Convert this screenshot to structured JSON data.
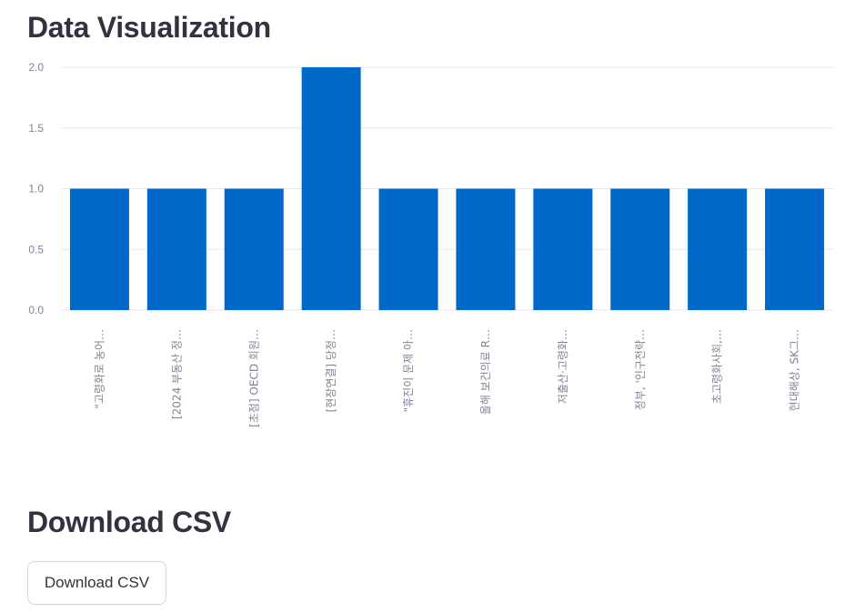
{
  "sections": {
    "viz_title": "Data Visualization",
    "download_title": "Download CSV",
    "download_button": "Download CSV"
  },
  "colors": {
    "bar": "#0068c9",
    "grid": "#e6e9ef",
    "tick": "#808495"
  },
  "chart_data": {
    "type": "bar",
    "title": "",
    "xlabel": "",
    "ylabel": "",
    "categories": [
      "\"고령화로 농어…",
      "[2024 부동산 정…",
      "[초점] OECD 회원…",
      "[현장연결] 당정…",
      "\"휴진이 문제 아…",
      "올해 보건의료 R…",
      "저출산·고령화…",
      "정부, '인구전략…",
      "초고령화사회,…",
      "현대해상, SK그…"
    ],
    "values": [
      1,
      1,
      1,
      2,
      1,
      1,
      1,
      1,
      1,
      1
    ],
    "ylim": [
      0,
      2
    ],
    "yticks": [
      "0.0",
      "0.5",
      "1.0",
      "1.5",
      "2.0"
    ],
    "grid": true
  }
}
